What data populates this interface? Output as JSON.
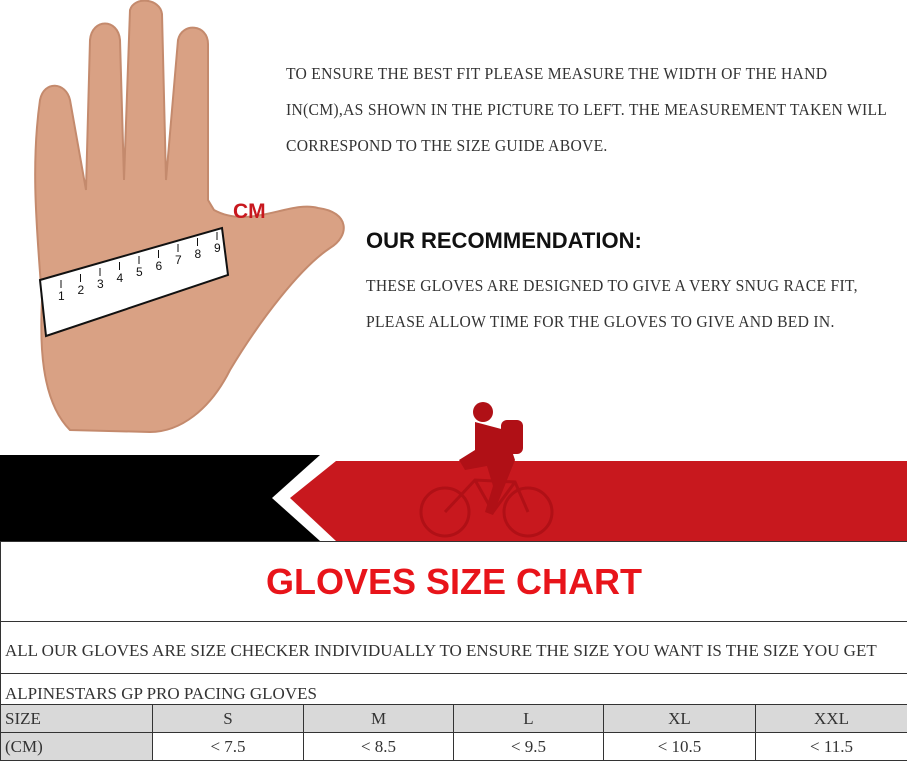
{
  "intro_text": "TO ENSURE THE BEST FIT PLEASE MEASURE THE WIDTH OF THE HAND IN(CM),AS SHOWN IN THE PICTURE TO LEFT. THE MEASUREMENT TAKEN WILL CORRESPOND TO THE SIZE GUIDE ABOVE.",
  "cm_label": "CM",
  "ruler_numbers": [
    "1",
    "2",
    "3",
    "4",
    "5",
    "6",
    "7",
    "8",
    "9"
  ],
  "recommendation": {
    "title": "OUR RECOMMENDATION:",
    "text": "THESE GLOVES ARE DESIGNED TO GIVE A VERY SNUG RACE FIT, PLEASE ALLOW TIME FOR THE GLOVES TO GIVE AND BED IN."
  },
  "colors": {
    "accent_red": "#e8141a",
    "banner_red": "#c8181e",
    "banner_black": "#000000"
  },
  "chart": {
    "title": "GLOVES SIZE CHART",
    "note": "ALL  OUR GLOVES ARE SIZE CHECKER INDIVIDUALLY TO ENSURE THE SIZE YOU WANT IS THE SIZE YOU GET",
    "product": "ALPINESTARS GP PRO PACING GLOVES",
    "header": [
      "SIZE",
      "S",
      "M",
      "L",
      "XL",
      "XXL"
    ],
    "row": [
      "(CM)",
      "< 7.5",
      "< 8.5",
      "< 9.5",
      "< 10.5",
      "< 11.5"
    ]
  }
}
